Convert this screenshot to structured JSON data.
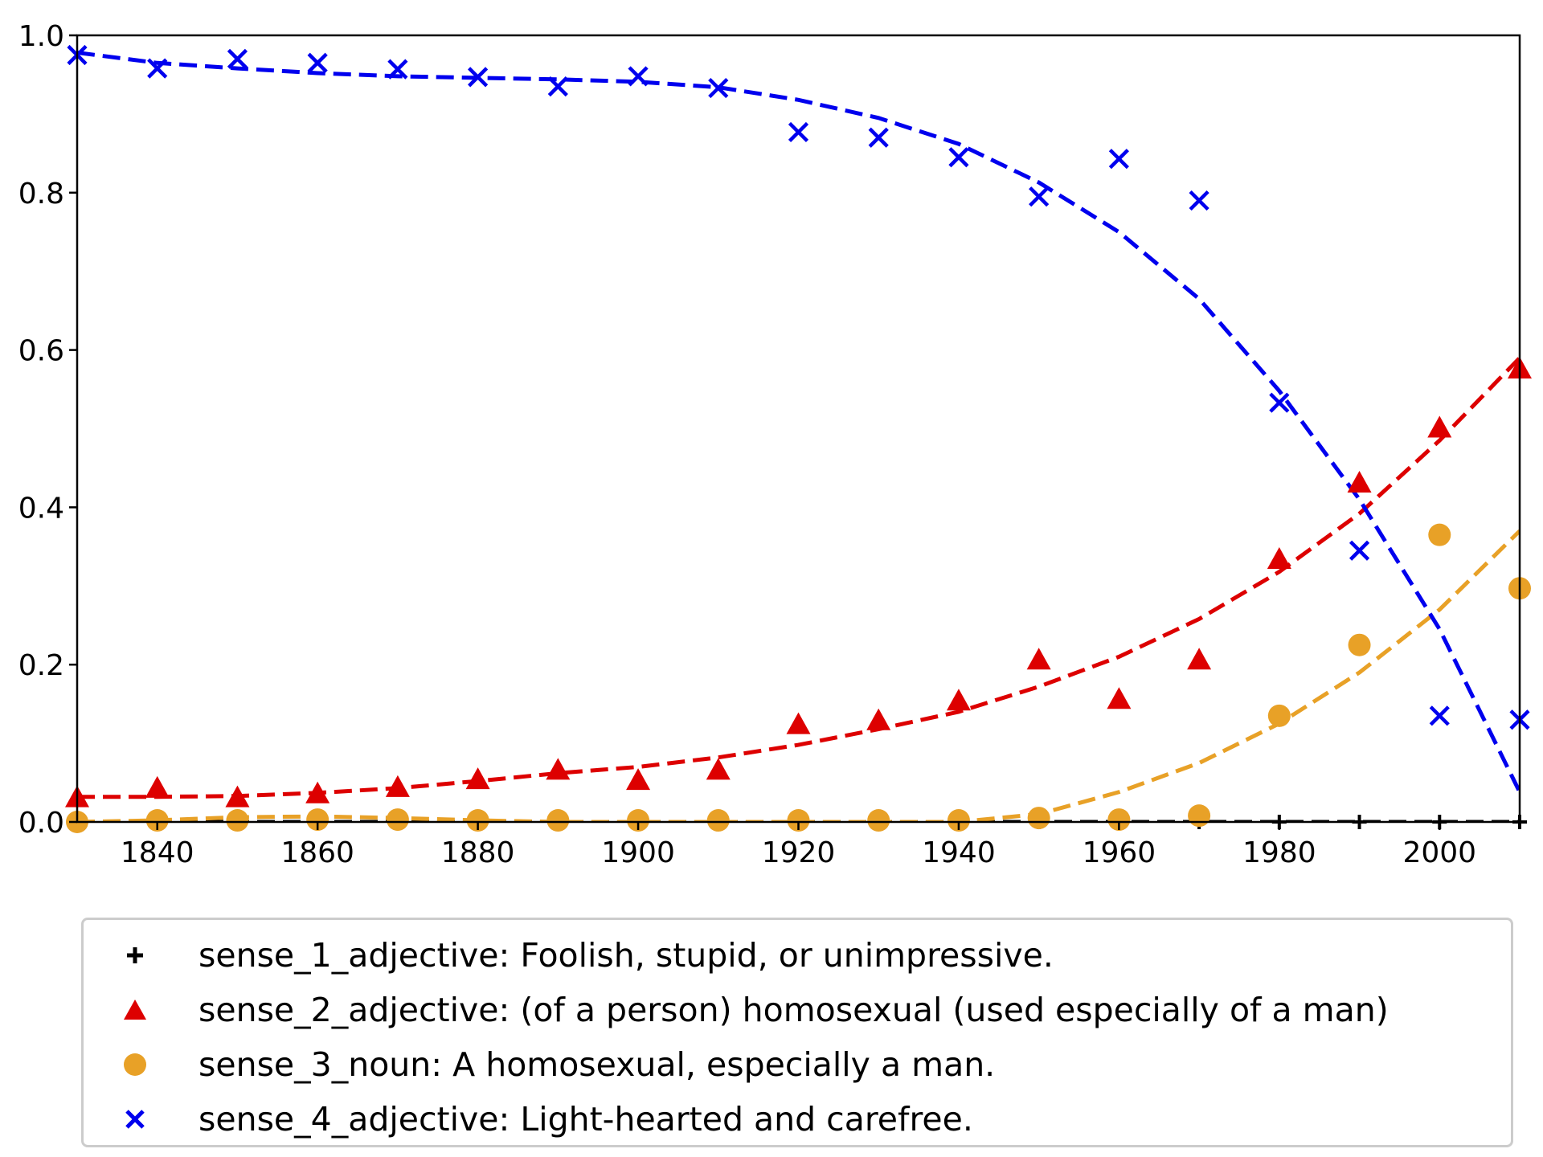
{
  "chart_data": {
    "type": "scatter",
    "title": "",
    "xlabel": "",
    "ylabel": "",
    "xlim": [
      1830,
      2010
    ],
    "ylim": [
      0.0,
      1.0
    ],
    "xticks": [
      "1840",
      "1860",
      "1880",
      "1900",
      "1920",
      "1940",
      "1960",
      "1980",
      "2000"
    ],
    "yticks": [
      "0.0",
      "0.2",
      "0.4",
      "0.6",
      "0.8",
      "1.0"
    ],
    "grid": false,
    "legend_position": "below",
    "x": [
      1830,
      1840,
      1850,
      1860,
      1870,
      1880,
      1890,
      1900,
      1910,
      1920,
      1930,
      1940,
      1950,
      1960,
      1970,
      1980,
      1990,
      2000,
      2010
    ],
    "series": [
      {
        "name": "sense_1_adjective: Foolish, stupid, or unimpressive.",
        "marker": "plus",
        "color": "#000000",
        "values": [
          0,
          0,
          0,
          0,
          0,
          0,
          0,
          0,
          0,
          0,
          0,
          0,
          0,
          0,
          0,
          0,
          0,
          0,
          0
        ],
        "trend": [
          [
            1830,
            0
          ],
          [
            2010,
            0
          ]
        ]
      },
      {
        "name": "sense_2_adjective: (of a person) homosexual (used especially of a man)",
        "marker": "triangle",
        "color": "#dd0000",
        "values": [
          0.03,
          0.042,
          0.03,
          0.035,
          0.043,
          0.053,
          0.065,
          0.052,
          0.065,
          0.123,
          0.128,
          0.153,
          0.205,
          0.155,
          0.205,
          0.333,
          0.43,
          0.5,
          0.575
        ],
        "trend": [
          [
            1830,
            0.032
          ],
          [
            1840,
            0.032
          ],
          [
            1850,
            0.033
          ],
          [
            1860,
            0.037
          ],
          [
            1870,
            0.043
          ],
          [
            1880,
            0.052
          ],
          [
            1890,
            0.062
          ],
          [
            1900,
            0.07
          ],
          [
            1910,
            0.082
          ],
          [
            1920,
            0.098
          ],
          [
            1930,
            0.118
          ],
          [
            1940,
            0.14
          ],
          [
            1950,
            0.172
          ],
          [
            1960,
            0.21
          ],
          [
            1970,
            0.258
          ],
          [
            1980,
            0.318
          ],
          [
            1990,
            0.392
          ],
          [
            2000,
            0.485
          ],
          [
            2010,
            0.59
          ]
        ]
      },
      {
        "name": "sense_3_noun: A homosexual, especially a man.",
        "marker": "circle",
        "color": "#e8a127",
        "values": [
          0.0,
          0.002,
          0.002,
          0.003,
          0.003,
          0.002,
          0.002,
          0.002,
          0.002,
          0.002,
          0.002,
          0.002,
          0.005,
          0.003,
          0.008,
          0.135,
          0.225,
          0.365,
          0.297
        ],
        "trend": [
          [
            1830,
            0.0
          ],
          [
            1840,
            0.002
          ],
          [
            1850,
            0.006
          ],
          [
            1860,
            0.007
          ],
          [
            1870,
            0.005
          ],
          [
            1880,
            0.002
          ],
          [
            1890,
            0.0
          ],
          [
            1940,
            0.0
          ],
          [
            1950,
            0.01
          ],
          [
            1960,
            0.038
          ],
          [
            1970,
            0.075
          ],
          [
            1980,
            0.125
          ],
          [
            1990,
            0.19
          ],
          [
            2000,
            0.27
          ],
          [
            2010,
            0.37
          ]
        ]
      },
      {
        "name": "sense_4_adjective: Light-hearted and carefree.",
        "marker": "x",
        "color": "#0000ee",
        "values": [
          0.975,
          0.958,
          0.97,
          0.965,
          0.957,
          0.947,
          0.935,
          0.948,
          0.933,
          0.877,
          0.87,
          0.845,
          0.795,
          0.843,
          0.79,
          0.533,
          0.345,
          0.135,
          0.13
        ],
        "trend": [
          [
            1830,
            0.978
          ],
          [
            1840,
            0.965
          ],
          [
            1850,
            0.958
          ],
          [
            1860,
            0.952
          ],
          [
            1870,
            0.948
          ],
          [
            1880,
            0.946
          ],
          [
            1890,
            0.944
          ],
          [
            1900,
            0.941
          ],
          [
            1910,
            0.934
          ],
          [
            1920,
            0.918
          ],
          [
            1930,
            0.895
          ],
          [
            1940,
            0.862
          ],
          [
            1950,
            0.813
          ],
          [
            1960,
            0.75
          ],
          [
            1970,
            0.665
          ],
          [
            1980,
            0.548
          ],
          [
            1990,
            0.41
          ],
          [
            2000,
            0.245
          ],
          [
            2010,
            0.038
          ]
        ]
      }
    ]
  }
}
